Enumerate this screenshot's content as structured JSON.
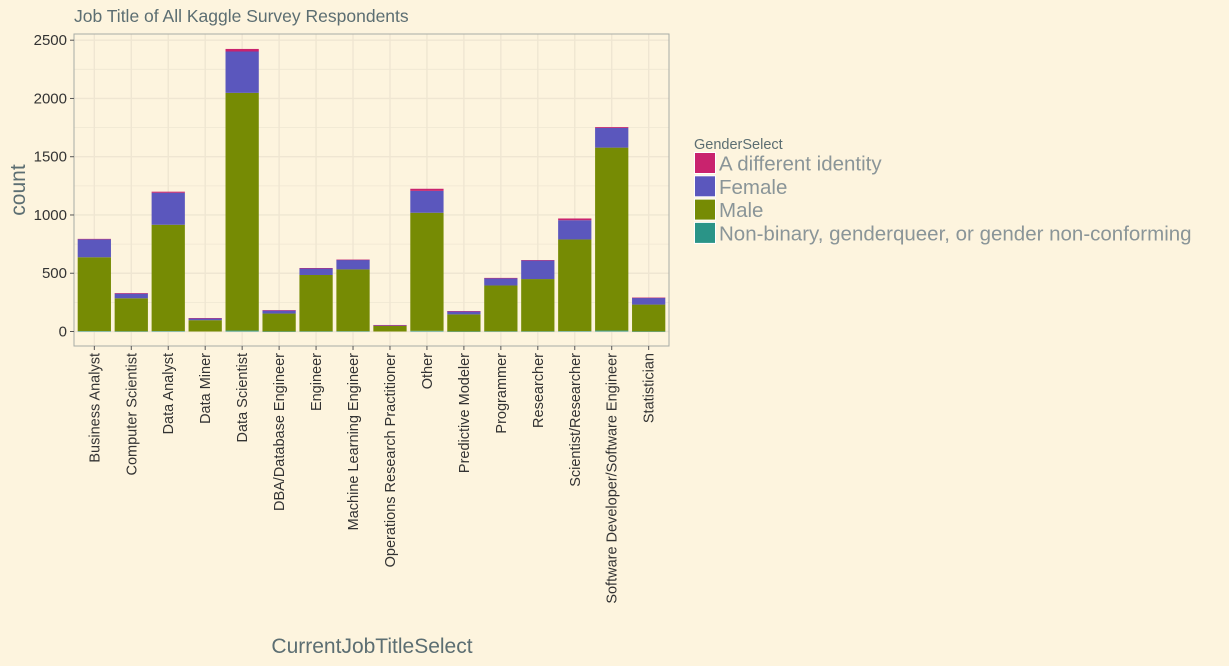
{
  "chart_data": {
    "type": "bar",
    "stacked": true,
    "title": "Job Title of All Kaggle Survey Respondents",
    "xlabel": "CurrentJobTitleSelect",
    "ylabel": "count",
    "ylim": [
      0,
      2500
    ],
    "yticks": [
      0,
      500,
      1000,
      1500,
      2000,
      2500
    ],
    "grid": true,
    "legend_title": "GenderSelect",
    "legend_position": "right",
    "categories": [
      "Business Analyst",
      "Computer Scientist",
      "Data Analyst",
      "Data Miner",
      "Data Scientist",
      "DBA/Database Engineer",
      "Engineer",
      "Machine Learning Engineer",
      "Operations Research Practitioner",
      "Other",
      "Predictive Modeler",
      "Programmer",
      "Researcher",
      "Scientist/Researcher",
      "Software Developer/Software Engineer",
      "Statistician"
    ],
    "series": [
      {
        "name": "Non-binary, genderqueer, or gender non-conforming",
        "color": "#2a9487",
        "values": [
          4,
          2,
          4,
          0,
          8,
          1,
          2,
          3,
          0,
          6,
          1,
          2,
          2,
          4,
          8,
          1
        ]
      },
      {
        "name": "Male",
        "color": "#768b04",
        "values": [
          633,
          283,
          912,
          97,
          2040,
          153,
          483,
          530,
          48,
          1013,
          146,
          393,
          448,
          786,
          1570,
          230
        ]
      },
      {
        "name": "Female",
        "color": "#5b57bd",
        "values": [
          155,
          40,
          275,
          17,
          355,
          27,
          57,
          82,
          7,
          188,
          27,
          63,
          160,
          165,
          170,
          58
        ]
      },
      {
        "name": "A different identity",
        "color": "#c9236e",
        "values": [
          3,
          5,
          9,
          1,
          22,
          2,
          3,
          2,
          1,
          18,
          1,
          2,
          3,
          15,
          7,
          2
        ]
      }
    ],
    "legend_order": [
      "A different identity",
      "Female",
      "Male",
      "Non-binary, genderqueer, or gender non-conforming"
    ]
  },
  "colors": {
    "background": "#fdf4de",
    "grid": "#efe6d2",
    "text": "#5c6e72",
    "legend_text": "#8a9598"
  }
}
